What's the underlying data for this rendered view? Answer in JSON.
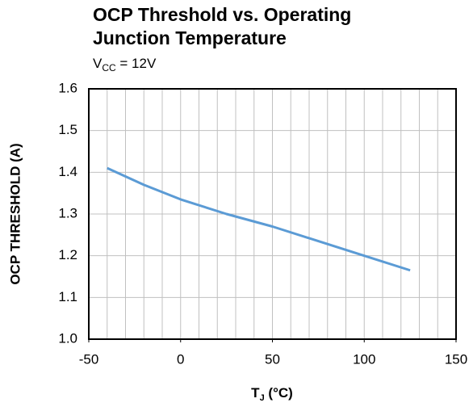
{
  "chart_data": {
    "type": "line",
    "title": [
      "OCP Threshold vs. Operating",
      "Junction Temperature"
    ],
    "subtitle": [
      "V",
      "CC",
      " = 12V"
    ],
    "xlabel": [
      "T",
      "J",
      " (°C)"
    ],
    "ylabel": "OCP THRESHOLD (A)",
    "x": [
      -40,
      -20,
      0,
      25,
      50,
      75,
      100,
      125
    ],
    "series": [
      {
        "name": "VCC = 12V",
        "color": "#5b9bd5",
        "values": [
          1.41,
          1.37,
          1.335,
          1.3,
          1.27,
          1.235,
          1.2,
          1.165
        ]
      }
    ],
    "xlim": [
      -50,
      150
    ],
    "xticks": [
      -50,
      0,
      50,
      100,
      150
    ],
    "xgrid": [
      -50,
      -40,
      -30,
      -20,
      -10,
      0,
      10,
      20,
      30,
      40,
      50,
      60,
      70,
      80,
      90,
      100,
      110,
      120,
      130,
      140,
      150
    ],
    "ylim": [
      1.0,
      1.6
    ],
    "yticks": [
      {
        "value": 1.0,
        "label": "1.0"
      },
      1.1,
      1.2,
      1.3,
      1.4,
      1.5,
      1.6
    ],
    "grid": true
  }
}
